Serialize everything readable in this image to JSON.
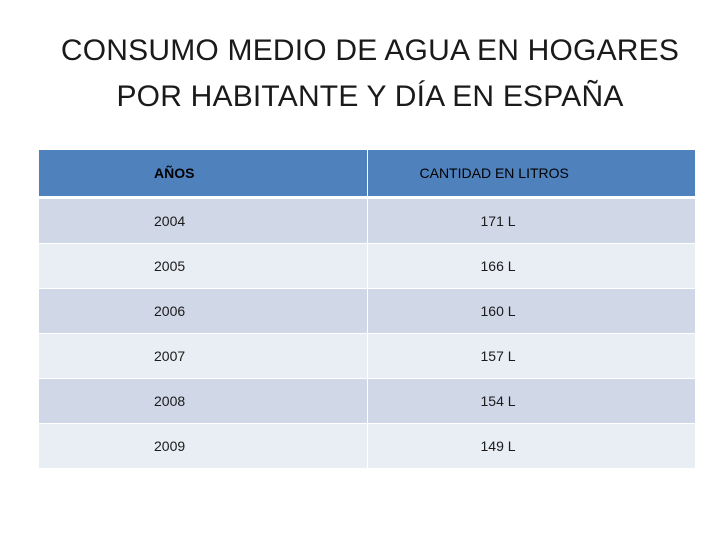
{
  "title": {
    "line1": "CONSUMO MEDIO DE AGUA EN HOGARES",
    "line2": "POR HABITANTE Y DÍA EN ESPAÑA"
  },
  "table": {
    "headers": [
      "AÑOS",
      "CANTIDAD EN LITROS"
    ],
    "rows": [
      [
        "2004",
        "171 L"
      ],
      [
        "2005",
        "166 L"
      ],
      [
        "2006",
        "160 L"
      ],
      [
        "2007",
        "157 L"
      ],
      [
        "2008",
        "154 L"
      ],
      [
        "2009",
        "149 L"
      ]
    ]
  },
  "colors": {
    "header_bg": "#4f81bd",
    "row_dark": "#d0d8e8",
    "row_light": "#e9edf4"
  }
}
